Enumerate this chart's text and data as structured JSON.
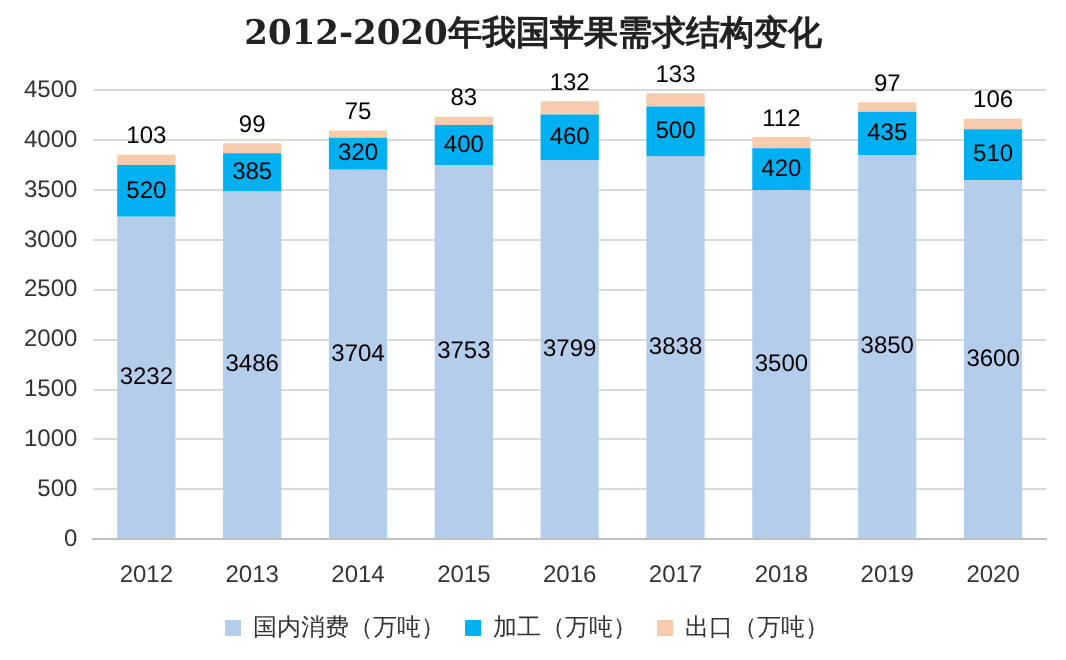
{
  "chart_data": {
    "type": "bar",
    "title": "2012-2020年我国苹果需求结构变化",
    "categories": [
      "2012",
      "2013",
      "2014",
      "2015",
      "2016",
      "2017",
      "2018",
      "2019",
      "2020"
    ],
    "series": [
      {
        "name": "国内消费（万吨）",
        "color": "#b4cdea",
        "values": [
          3232,
          3486,
          3704,
          3753,
          3799,
          3838,
          3500,
          3850,
          3600
        ]
      },
      {
        "name": "加工（万吨）",
        "color": "#00b0f0",
        "values": [
          520,
          385,
          320,
          400,
          460,
          500,
          420,
          435,
          510
        ]
      },
      {
        "name": "出口（万吨）",
        "color": "#f8cbad",
        "values": [
          103,
          99,
          75,
          83,
          132,
          133,
          112,
          97,
          106
        ]
      }
    ],
    "stacked": true,
    "ylim": [
      0,
      4500
    ],
    "yticks": [
      0,
      500,
      1000,
      1500,
      2000,
      2500,
      3000,
      3500,
      4000,
      4500
    ],
    "grid": "y",
    "legend": "bottom",
    "data_labels": true
  }
}
